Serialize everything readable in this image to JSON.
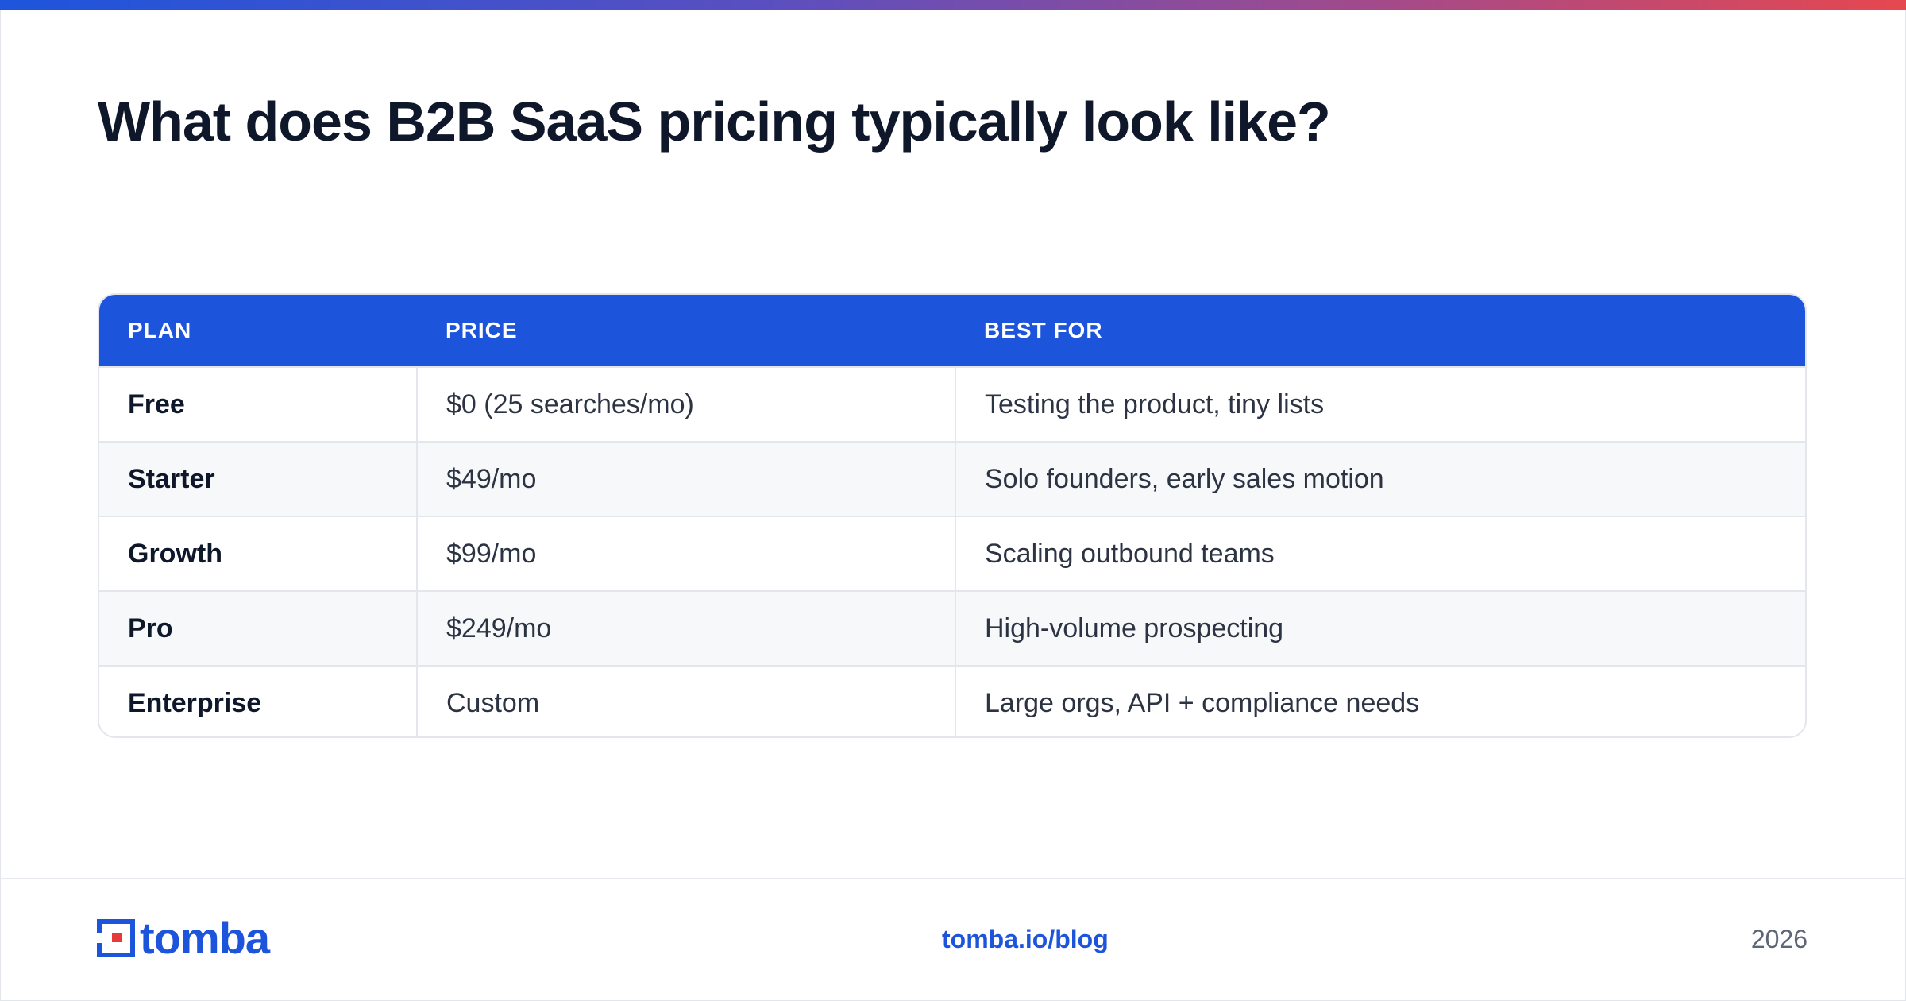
{
  "title": "What does B2B SaaS pricing typically look like?",
  "table": {
    "headers": [
      "PLAN",
      "PRICE",
      "BEST FOR"
    ],
    "rows": [
      {
        "plan": "Free",
        "price": "$0 (25 searches/mo)",
        "best_for": "Testing the product, tiny lists"
      },
      {
        "plan": "Starter",
        "price": "$49/mo",
        "best_for": "Solo founders, early sales motion"
      },
      {
        "plan": "Growth",
        "price": "$99/mo",
        "best_for": "Scaling outbound teams"
      },
      {
        "plan": "Pro",
        "price": "$249/mo",
        "best_for": "High-volume prospecting"
      },
      {
        "plan": "Enterprise",
        "price": "Custom",
        "best_for": "Large orgs, API + compliance needs"
      }
    ]
  },
  "footer": {
    "logo_text": "tomba",
    "link": "tomba.io/blog",
    "year": "2026"
  },
  "colors": {
    "accent_blue": "#1c55dc",
    "logo_red": "#e63a3a",
    "title_dark": "#0f172a"
  }
}
